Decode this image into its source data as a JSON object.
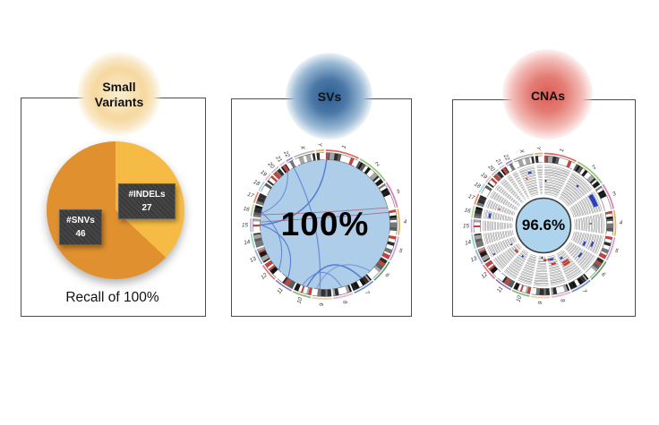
{
  "figure": {
    "background": "#ffffff",
    "chromosome_labels": [
      "1",
      "2",
      "3",
      "4",
      "5",
      "6",
      "7",
      "8",
      "9",
      "10",
      "11",
      "12",
      "13",
      "14",
      "15",
      "16",
      "17",
      "18",
      "19",
      "20",
      "21",
      "22",
      "X",
      "Y"
    ],
    "chromosome_sizes": [
      8.0,
      7.9,
      6.5,
      6.2,
      5.9,
      5.6,
      5.2,
      4.7,
      4.6,
      4.4,
      4.4,
      4.3,
      3.7,
      3.5,
      3.3,
      2.9,
      2.7,
      2.5,
      1.9,
      2.1,
      1.5,
      1.7,
      5.0,
      1.9
    ],
    "chrom_colors": [
      "#d94f44",
      "#7fbf5a",
      "#d668b5",
      "#eb9f3c",
      "#c98bd8",
      "#3e9150",
      "#5577cc",
      "#eba0c3",
      "#f0c49a",
      "#6fae58",
      "#7a5fb0",
      "#d95b66",
      "#8aa3cc",
      "#72cfc2",
      "#b9a3dd",
      "#9fd387",
      "#e2734a",
      "#8fd3e8",
      "#eaa9bd",
      "#b5b5b5",
      "#dfb3dc",
      "#9177b8",
      "#a8a8a8",
      "#e0a23e"
    ],
    "band_palette": [
      "#1b1b1b",
      "#ffffff",
      "#5a5a5a",
      "#ffffff",
      "#2e2e2e",
      "#a5a5a5",
      "#ffffff",
      "#c4433d",
      "#141414",
      "#ffffff",
      "#777777",
      "#ffffff"
    ],
    "band_seed": 1337,
    "ideogram_outline": "#666666",
    "ring_gray": "#949494",
    "label_color": "#333333"
  },
  "chart_data": [
    {
      "id": "small-variants",
      "type": "pie",
      "title": "Small Variants",
      "title_lines": [
        "Small",
        "Variants"
      ],
      "glow_gradient": [
        [
          "#faeed2",
          0
        ],
        [
          "#f6d89f",
          42
        ],
        [
          "#f8e7c4",
          58
        ],
        [
          "rgba(255,255,255,0)",
          73
        ]
      ],
      "categories": [
        "#SNVs",
        "#INDELs"
      ],
      "values": [
        46,
        27
      ],
      "colors": [
        "#e0902e",
        "#f5bb45"
      ],
      "labels": [
        {
          "name": "#SNVs",
          "value": "46"
        },
        {
          "name": "#INDELs",
          "value": "27"
        }
      ],
      "caption": "Recall of 100%"
    },
    {
      "id": "svs",
      "type": "circos-links",
      "title": "SVs",
      "glow_gradient": [
        [
          "#2c5e92",
          0
        ],
        [
          "#4a77a6",
          28
        ],
        [
          "#9cbbd6",
          55
        ],
        [
          "rgba(255,255,255,0)",
          74
        ]
      ],
      "center_label": "100%",
      "inner_fill": "#aecde8",
      "links": [
        {
          "a": [
            "15",
            0.5
          ],
          "b": [
            "1",
            0.03
          ],
          "color": "#3f66cc",
          "bend": 0.82,
          "width": 1.4
        },
        {
          "a": [
            "15",
            0.75
          ],
          "b": [
            "4",
            0.06
          ],
          "color": "#9c5480",
          "bend": 0.12,
          "width": 0.9
        },
        {
          "a": [
            "16",
            0.25
          ],
          "b": [
            "3",
            0.92
          ],
          "color": "#aa5f63",
          "bend": 0.12,
          "width": 0.9
        },
        {
          "a": [
            "15",
            0.55
          ],
          "b": [
            "11",
            0.55
          ],
          "color": "#4a6fd4",
          "bend": 0.5,
          "width": 1.2
        },
        {
          "a": [
            "22",
            0.5
          ],
          "b": [
            "9",
            0.65
          ],
          "color": "#5b82d6",
          "bend": 0.9,
          "width": 1.3
        },
        {
          "a": [
            "10",
            0.35
          ],
          "b": [
            "7",
            0.35
          ],
          "color": "#3f66cc",
          "bend": 0.6,
          "width": 1.5
        },
        {
          "a": [
            "9",
            0.85
          ],
          "b": [
            "6",
            0.85
          ],
          "color": "#6b8fd8",
          "bend": 0.5,
          "width": 1.1
        },
        {
          "a": [
            "10",
            0.65
          ],
          "b": [
            "8",
            0.45
          ],
          "color": "#5b82d6",
          "bend": 0.45,
          "width": 1.1
        },
        {
          "a": [
            "16",
            0.5
          ],
          "b": [
            "12",
            0.2
          ],
          "color": "#4a6fd4",
          "bend": 0.35,
          "width": 1.0
        },
        {
          "a": [
            "21",
            0.5
          ],
          "b": [
            "16",
            0.4
          ],
          "color": "#4a6fd4",
          "bend": 0.3,
          "width": 0.9
        }
      ]
    },
    {
      "id": "cnas",
      "type": "circos-cna",
      "title": "CNAs",
      "glow_gradient": [
        [
          "#dd5f57",
          0
        ],
        [
          "#e37c74",
          28
        ],
        [
          "#f3bcb7",
          55
        ],
        [
          "rgba(255,255,255,0)",
          74
        ]
      ],
      "center_label": "96.6%",
      "center_fill": "#aed3ec",
      "rings": 12,
      "gain_color": "#c0392b",
      "loss_color": "#2b3fbf",
      "segments": [
        {
          "chr": "3",
          "ring": 1,
          "start": 0.08,
          "end": 0.7,
          "color": "#2b3fbf",
          "thick": 2
        },
        {
          "chr": "2",
          "ring": 3,
          "start": 0.44,
          "end": 0.54,
          "color": "#2b3fbf",
          "thick": 1
        },
        {
          "chr": "1",
          "ring": 6,
          "start": 0.05,
          "end": 0.12,
          "color": "#1a2050",
          "thick": 1
        },
        {
          "chr": "4",
          "ring": 5,
          "start": 0.46,
          "end": 0.52,
          "color": "#1a2050",
          "thick": 1
        },
        {
          "chr": "5",
          "ring": 3,
          "start": 0.45,
          "end": 0.75,
          "color": "#2b3fbf",
          "thick": 1
        },
        {
          "chr": "5",
          "ring": 6,
          "start": 0.6,
          "end": 0.9,
          "color": "#2b3fbf",
          "thick": 1
        },
        {
          "chr": "6",
          "ring": 5,
          "start": 0.3,
          "end": 0.65,
          "color": "#2b3fbf",
          "thick": 1
        },
        {
          "chr": "7",
          "ring": 6,
          "start": 0.25,
          "end": 0.8,
          "color": "#c0392b",
          "thick": 1
        },
        {
          "chr": "7",
          "ring": 7,
          "start": 0.25,
          "end": 0.8,
          "color": "#c0392b",
          "thick": 1
        },
        {
          "chr": "7",
          "ring": 9,
          "start": 0.55,
          "end": 0.8,
          "color": "#2b3fbf",
          "thick": 1
        },
        {
          "chr": "8",
          "ring": 8,
          "start": 0.25,
          "end": 0.7,
          "color": "#c0392b",
          "thick": 1
        },
        {
          "chr": "8",
          "ring": 10,
          "start": 0.35,
          "end": 0.78,
          "color": "#2b3fbf",
          "thick": 1
        },
        {
          "chr": "8",
          "ring": 10,
          "start": 0.8,
          "end": 1.0,
          "color": "#c0392b",
          "thick": 1
        },
        {
          "chr": "9",
          "ring": 10,
          "start": 0.0,
          "end": 0.35,
          "color": "#c0392b",
          "thick": 1
        },
        {
          "chr": "9",
          "ring": 11,
          "start": 0.45,
          "end": 0.58,
          "color": "#1a2050",
          "thick": 1
        },
        {
          "chr": "11",
          "ring": 9,
          "start": 0.4,
          "end": 0.6,
          "color": "#2b3fbf",
          "thick": 1
        },
        {
          "chr": "12",
          "ring": 9,
          "start": 0.05,
          "end": 0.5,
          "color": "#c0392b",
          "thick": 1
        },
        {
          "chr": "13",
          "ring": 9,
          "start": 0.0,
          "end": 0.2,
          "color": "#2b3fbf",
          "thick": 1
        },
        {
          "chr": "13",
          "ring": 1,
          "start": 0.08,
          "end": 0.22,
          "color": "#2b3fbf",
          "thick": 1
        },
        {
          "chr": "16",
          "ring": 2,
          "start": 0.15,
          "end": 0.7,
          "color": "#2b3fbf",
          "thick": 1
        },
        {
          "chr": "17",
          "ring": 5,
          "start": 0.25,
          "end": 0.42,
          "color": "#c0392b",
          "thick": 1
        },
        {
          "chr": "X",
          "ring": 2,
          "start": 0.5,
          "end": 0.72,
          "color": "#2b3fbf",
          "thick": 1
        },
        {
          "chr": "X",
          "ring": 4,
          "start": 0.25,
          "end": 0.35,
          "color": "#c0392b",
          "thick": 1
        }
      ]
    }
  ]
}
